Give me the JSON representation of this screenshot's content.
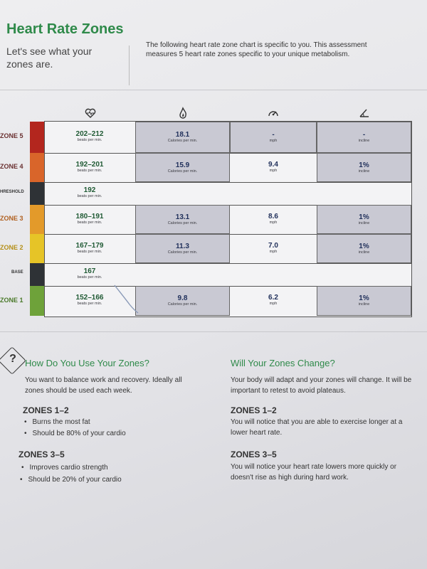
{
  "header": {
    "title": "Heart Rate Zones",
    "subtitle": "Let's see what your zones are.",
    "intro": "The following heart rate zone chart is specific to you. This assessment measures 5 heart rate zones specific to your unique metabolism."
  },
  "table": {
    "columns": [
      {
        "icon": "heart-rate-icon"
      },
      {
        "icon": "calorie-flame-icon"
      },
      {
        "icon": "speedometer-icon"
      },
      {
        "icon": "incline-icon"
      }
    ],
    "rows": [
      {
        "label": "ZONE 5",
        "color": "#b3261e",
        "bpm": "202–212",
        "bpm_unit": "beats per min.",
        "cal": "18.1",
        "cal_unit": "Calories per min.",
        "speed": "-",
        "speed_unit": "mph",
        "incline": "-",
        "incline_unit": "incline"
      },
      {
        "label": "ZONE 4",
        "color": "#d9652a",
        "bpm": "192–201",
        "bpm_unit": "beats per min.",
        "cal": "15.9",
        "cal_unit": "Calories per min.",
        "speed": "9.4",
        "speed_unit": "mph",
        "incline": "1%",
        "incline_unit": "incline"
      },
      {
        "label": "HRESHOLD",
        "color": "#2e3236",
        "bpm": "192",
        "bpm_unit": "beats per min."
      },
      {
        "label": "ZONE 3",
        "color": "#e39a2a",
        "bpm": "180–191",
        "bpm_unit": "beats per min.",
        "cal": "13.1",
        "cal_unit": "Calories per min.",
        "speed": "8.6",
        "speed_unit": "mph",
        "incline": "1%",
        "incline_unit": "incline"
      },
      {
        "label": "ZONE 2",
        "color": "#e6c427",
        "bpm": "167–179",
        "bpm_unit": "beats per min.",
        "cal": "11.3",
        "cal_unit": "Calories per min.",
        "speed": "7.0",
        "speed_unit": "mph",
        "incline": "1%",
        "incline_unit": "incline"
      },
      {
        "label": "BASE",
        "color": "#2e3236",
        "bpm": "167",
        "bpm_unit": "beats per min."
      },
      {
        "label": "ZONE 1",
        "color": "#6ea23a",
        "bpm": "152–166",
        "bpm_unit": "beats per min.",
        "cal": "9.8",
        "cal_unit": "Calories per min.",
        "speed": "6.2",
        "speed_unit": "mph",
        "incline": "1%",
        "incline_unit": "incline"
      }
    ]
  },
  "left": {
    "heading": "How Do You Use Your Zones?",
    "body": "You want to balance work and recovery. Ideally all zones should be used each week.",
    "z12_title": "ZONES 1–2",
    "z12_bullets": [
      "Burns the most fat",
      "Should be 80% of your cardio"
    ],
    "z35_title": "ZONES 3–5",
    "z35_bullets": [
      "Improves cardio strength",
      "Should be 20% of your cardio"
    ]
  },
  "right": {
    "heading": "Will Your Zones Change?",
    "body": "Your body will adapt and your zones will change. It will be important to retest to avoid plateaus.",
    "z12_title": "ZONES 1–2",
    "z12_body": "You will notice that you are able to exercise longer at a lower heart rate.",
    "z35_title": "ZONES 3–5",
    "z35_body": "You will notice your heart rate lowers more quickly or doesn't rise as high during hard work."
  }
}
